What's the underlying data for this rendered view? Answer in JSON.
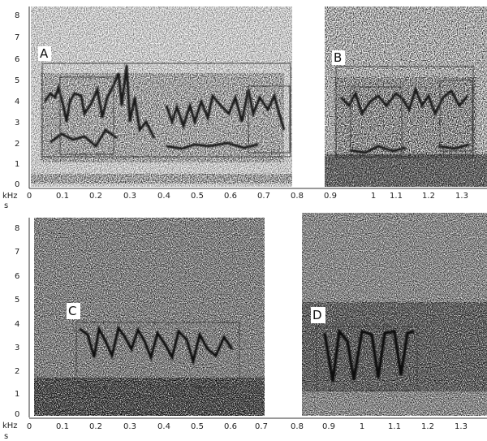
{
  "figure": {
    "y_axis_label": "kHz",
    "x_axis_label": "s",
    "y_ticks": [
      "0",
      "1",
      "2",
      "3",
      "4",
      "5",
      "6",
      "7",
      "8"
    ],
    "top_x_ticks": [
      "0",
      "0.1",
      "0.2",
      "0.3",
      "0.4",
      "0.5",
      "0.6",
      "0.7",
      "0.8",
      "0.9",
      "1",
      "1.1",
      "1.2",
      "1.3"
    ],
    "bottom_x_ticks": [
      "0",
      "0.1",
      "0.2",
      "0.3",
      "0.4",
      "0.5",
      "0.6",
      "0.7",
      "0.8",
      "0.9",
      "1",
      "1.1",
      "1.2",
      "1.3"
    ],
    "panels": [
      {
        "label": "A"
      },
      {
        "label": "B"
      },
      {
        "label": "C"
      },
      {
        "label": "D"
      }
    ]
  }
}
